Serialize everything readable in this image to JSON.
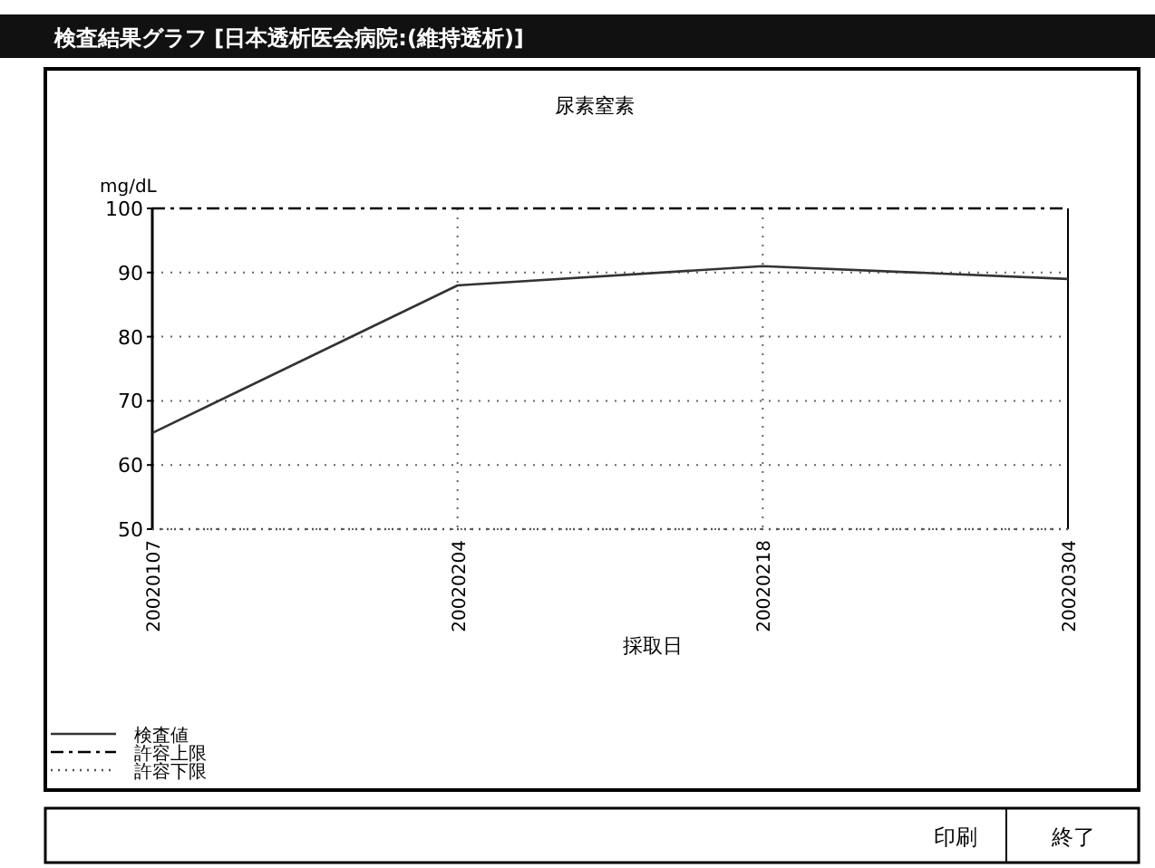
{
  "chart_data": {
    "type": "line",
    "title": "尿素窒素",
    "ylabel": "mg/dL",
    "xlabel": "採取日",
    "categories": [
      "20020107",
      "20020204",
      "20020218",
      "20020304"
    ],
    "series": [
      {
        "name": "検査値",
        "color": "#333333",
        "values": [
          65,
          88,
          91,
          89
        ],
        "line_style": "solid"
      },
      {
        "name": "許容上限",
        "color": "#000000",
        "values": [
          100,
          100,
          100,
          100
        ],
        "line_style": "dashed"
      },
      {
        "name": "許容下限",
        "color": "#555555",
        "values": [
          50,
          50,
          50,
          50
        ],
        "line_style": "dotted"
      }
    ],
    "ylim": [
      50,
      100
    ],
    "yticks": [
      50,
      60,
      70,
      80,
      90,
      100
    ],
    "grid": true,
    "legend": "bottom left",
    "annotations": [
      "検査結果グラフ [日本透析医会病院:(維持透析)]",
      "印刷",
      "終了"
    ]
  }
}
